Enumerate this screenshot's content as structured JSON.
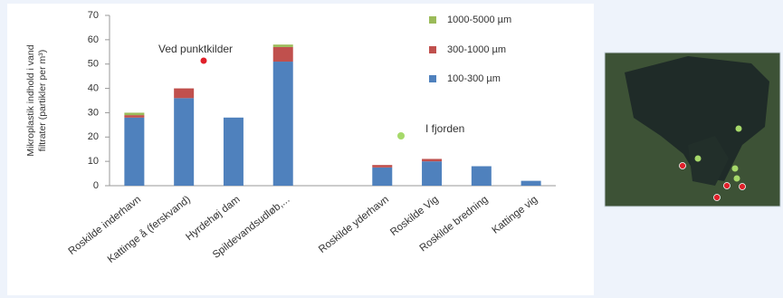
{
  "chart_data": {
    "type": "bar",
    "stacked": true,
    "y_label": [
      "Mikroplastik indhold i vand",
      "filtrater (partikler per m³)"
    ],
    "categories": [
      "Roskilde inderhavn",
      "Kattinge å (ferskvand)",
      "Hyrdehøj dam",
      "Spildevandsudløb,...",
      null,
      "Roskilde yderhavn",
      "Roskilde Vig",
      "Roskilde bredning",
      "Kattinge vig"
    ],
    "series": [
      {
        "name": "100-300 µm",
        "color": "#4f81bd",
        "values": [
          28,
          36,
          28,
          51,
          null,
          7.5,
          10,
          8,
          2
        ]
      },
      {
        "name": "300-1000 µm",
        "color": "#c0504d",
        "values": [
          1,
          4,
          0,
          6,
          null,
          1,
          1,
          0,
          0
        ]
      },
      {
        "name": "1000-5000 µm",
        "color": "#9bbb59",
        "values": [
          1,
          0,
          0,
          1,
          null,
          0,
          0,
          0,
          0
        ]
      }
    ],
    "ylim": [
      0,
      70
    ],
    "yticks": [
      0,
      10,
      20,
      30,
      40,
      50,
      60,
      70
    ],
    "annotations": [
      {
        "text": "Ved punktkilder"
      },
      {
        "text": "I fjorden"
      }
    ]
  }
}
